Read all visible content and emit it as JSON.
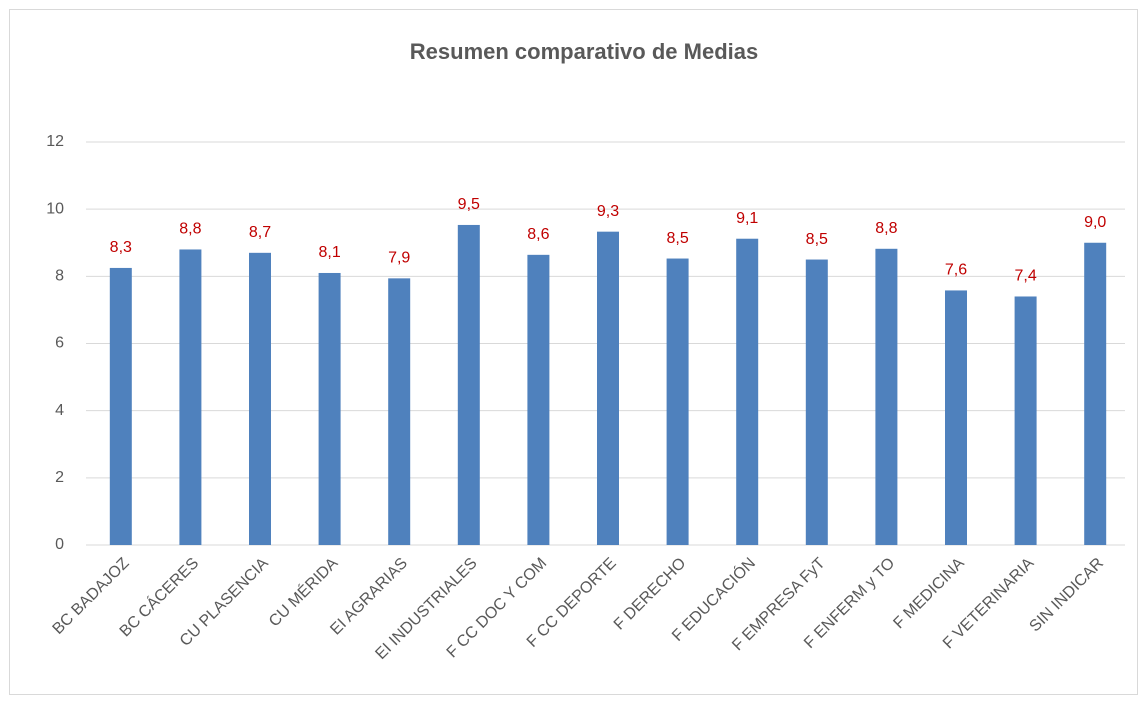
{
  "chart_data": {
    "type": "bar",
    "title": "Resumen comparativo de Medias",
    "categories": [
      "BC BADAJOZ",
      "BC CÁCERES",
      "CU PLASENCIA",
      "CU MÉRIDA",
      "EI AGRARIAS",
      "EI INDUSTRIALES",
      "F CC DOC Y COM",
      "F CC DEPORTE",
      "F DERECHO",
      "F EDUCACIÓN",
      "F EMPRESA FyT",
      "F ENFERM y TO",
      "F MEDICINA",
      "F VETERINARIA",
      "SIN INDICAR"
    ],
    "values": [
      8.25,
      8.8,
      8.7,
      8.1,
      7.94,
      9.53,
      8.64,
      9.33,
      8.53,
      9.12,
      8.5,
      8.82,
      7.58,
      7.4,
      9.0
    ],
    "value_labels": [
      "8,3",
      "8,8",
      "8,7",
      "8,1",
      "7,9",
      "9,5",
      "8,6",
      "9,3",
      "8,5",
      "9,1",
      "8,5",
      "8,8",
      "7,6",
      "7,4",
      "9,0"
    ],
    "color": "#4f81bd",
    "label_color": "#c00000",
    "ylim": [
      0,
      12
    ],
    "yticks": [
      0,
      2,
      4,
      6,
      8,
      10,
      12
    ],
    "grid": true
  }
}
